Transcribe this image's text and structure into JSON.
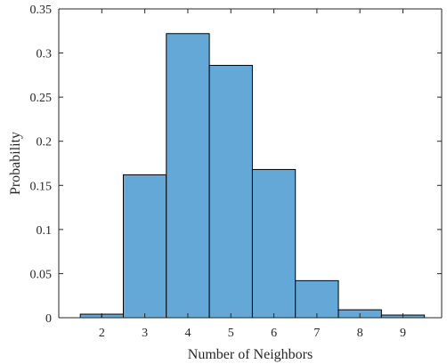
{
  "chart_data": {
    "type": "bar",
    "title": "",
    "xlabel": "Number of Neighbors",
    "ylabel": "Probability",
    "categories": [
      "2",
      "3",
      "4",
      "5",
      "6",
      "7",
      "8",
      "9"
    ],
    "bins": [
      {
        "left": 1.5,
        "right": 2.0,
        "value": 0.004
      },
      {
        "left": 2.0,
        "right": 2.5,
        "value": 0.004
      },
      {
        "left": 2.5,
        "right": 3.5,
        "value": 0.162
      },
      {
        "left": 3.5,
        "right": 4.5,
        "value": 0.322
      },
      {
        "left": 4.5,
        "right": 5.5,
        "value": 0.286
      },
      {
        "left": 5.5,
        "right": 6.5,
        "value": 0.168
      },
      {
        "left": 6.5,
        "right": 7.5,
        "value": 0.042
      },
      {
        "left": 7.5,
        "right": 8.5,
        "value": 0.009
      },
      {
        "left": 8.5,
        "right": 9.0,
        "value": 0.003
      },
      {
        "left": 9.0,
        "right": 9.5,
        "value": 0.003
      }
    ],
    "xlim": [
      1.0,
      9.9
    ],
    "ylim": [
      0,
      0.35
    ],
    "xticks": [
      2,
      3,
      4,
      5,
      6,
      7,
      8,
      9
    ],
    "yticks": [
      0,
      0.05,
      0.1,
      0.15,
      0.2,
      0.25,
      0.3,
      0.35
    ],
    "ytick_labels": [
      "0",
      "0.05",
      "0.1",
      "0.15",
      "0.2",
      "0.25",
      "0.3",
      "0.35"
    ],
    "grid": false,
    "colors": {
      "bar_fill": "#64a8d8",
      "bar_edge": "#000000",
      "axis": "#262626"
    }
  }
}
